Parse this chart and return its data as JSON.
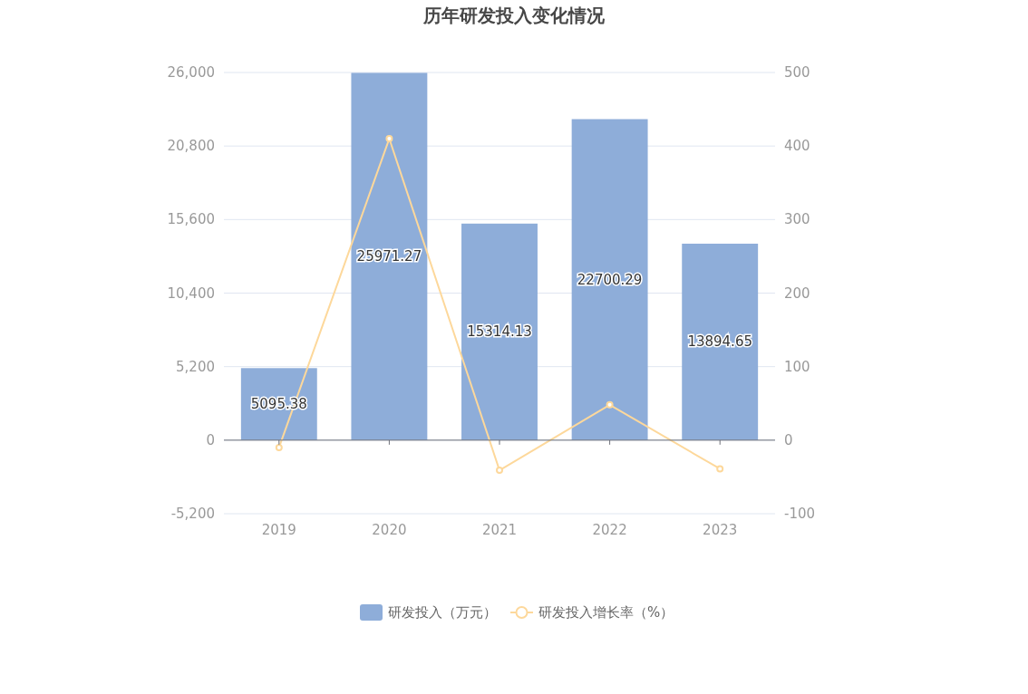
{
  "chart_data": {
    "type": "bar",
    "title": "历年研发投入变化情况",
    "categories": [
      "2019",
      "2020",
      "2021",
      "2022",
      "2023"
    ],
    "series": [
      {
        "name": "研发投入（万元）",
        "color": "#8eadd9",
        "values": [
          5095.38,
          25971.27,
          15314.13,
          22700.29,
          13894.65
        ],
        "value_labels": [
          "5095.38",
          "25971.27",
          "15314.13",
          "22700.29",
          "13894.65"
        ]
      },
      {
        "name": "研发投入增长率（%）",
        "type": "line",
        "axis": "y2",
        "color": "#fdd89b",
        "values": [
          -10,
          410,
          -41,
          48,
          -39
        ]
      }
    ],
    "ylim": [
      -5200,
      26000
    ],
    "yticks": [
      {
        "value": -5200,
        "label": "-5,200"
      },
      0,
      {
        "value": 5200,
        "label": "5,200"
      },
      {
        "value": 10400,
        "label": "10,400"
      },
      {
        "value": 15600,
        "label": "15,600"
      },
      {
        "value": 20800,
        "label": "20,800"
      },
      {
        "value": 26000,
        "label": "26,000"
      }
    ],
    "y2lim": [
      -100,
      500
    ],
    "y2ticks": [
      -100,
      0,
      100,
      200,
      300,
      400,
      500
    ],
    "grid": "y",
    "legend": "bottom",
    "marker": "circle"
  }
}
